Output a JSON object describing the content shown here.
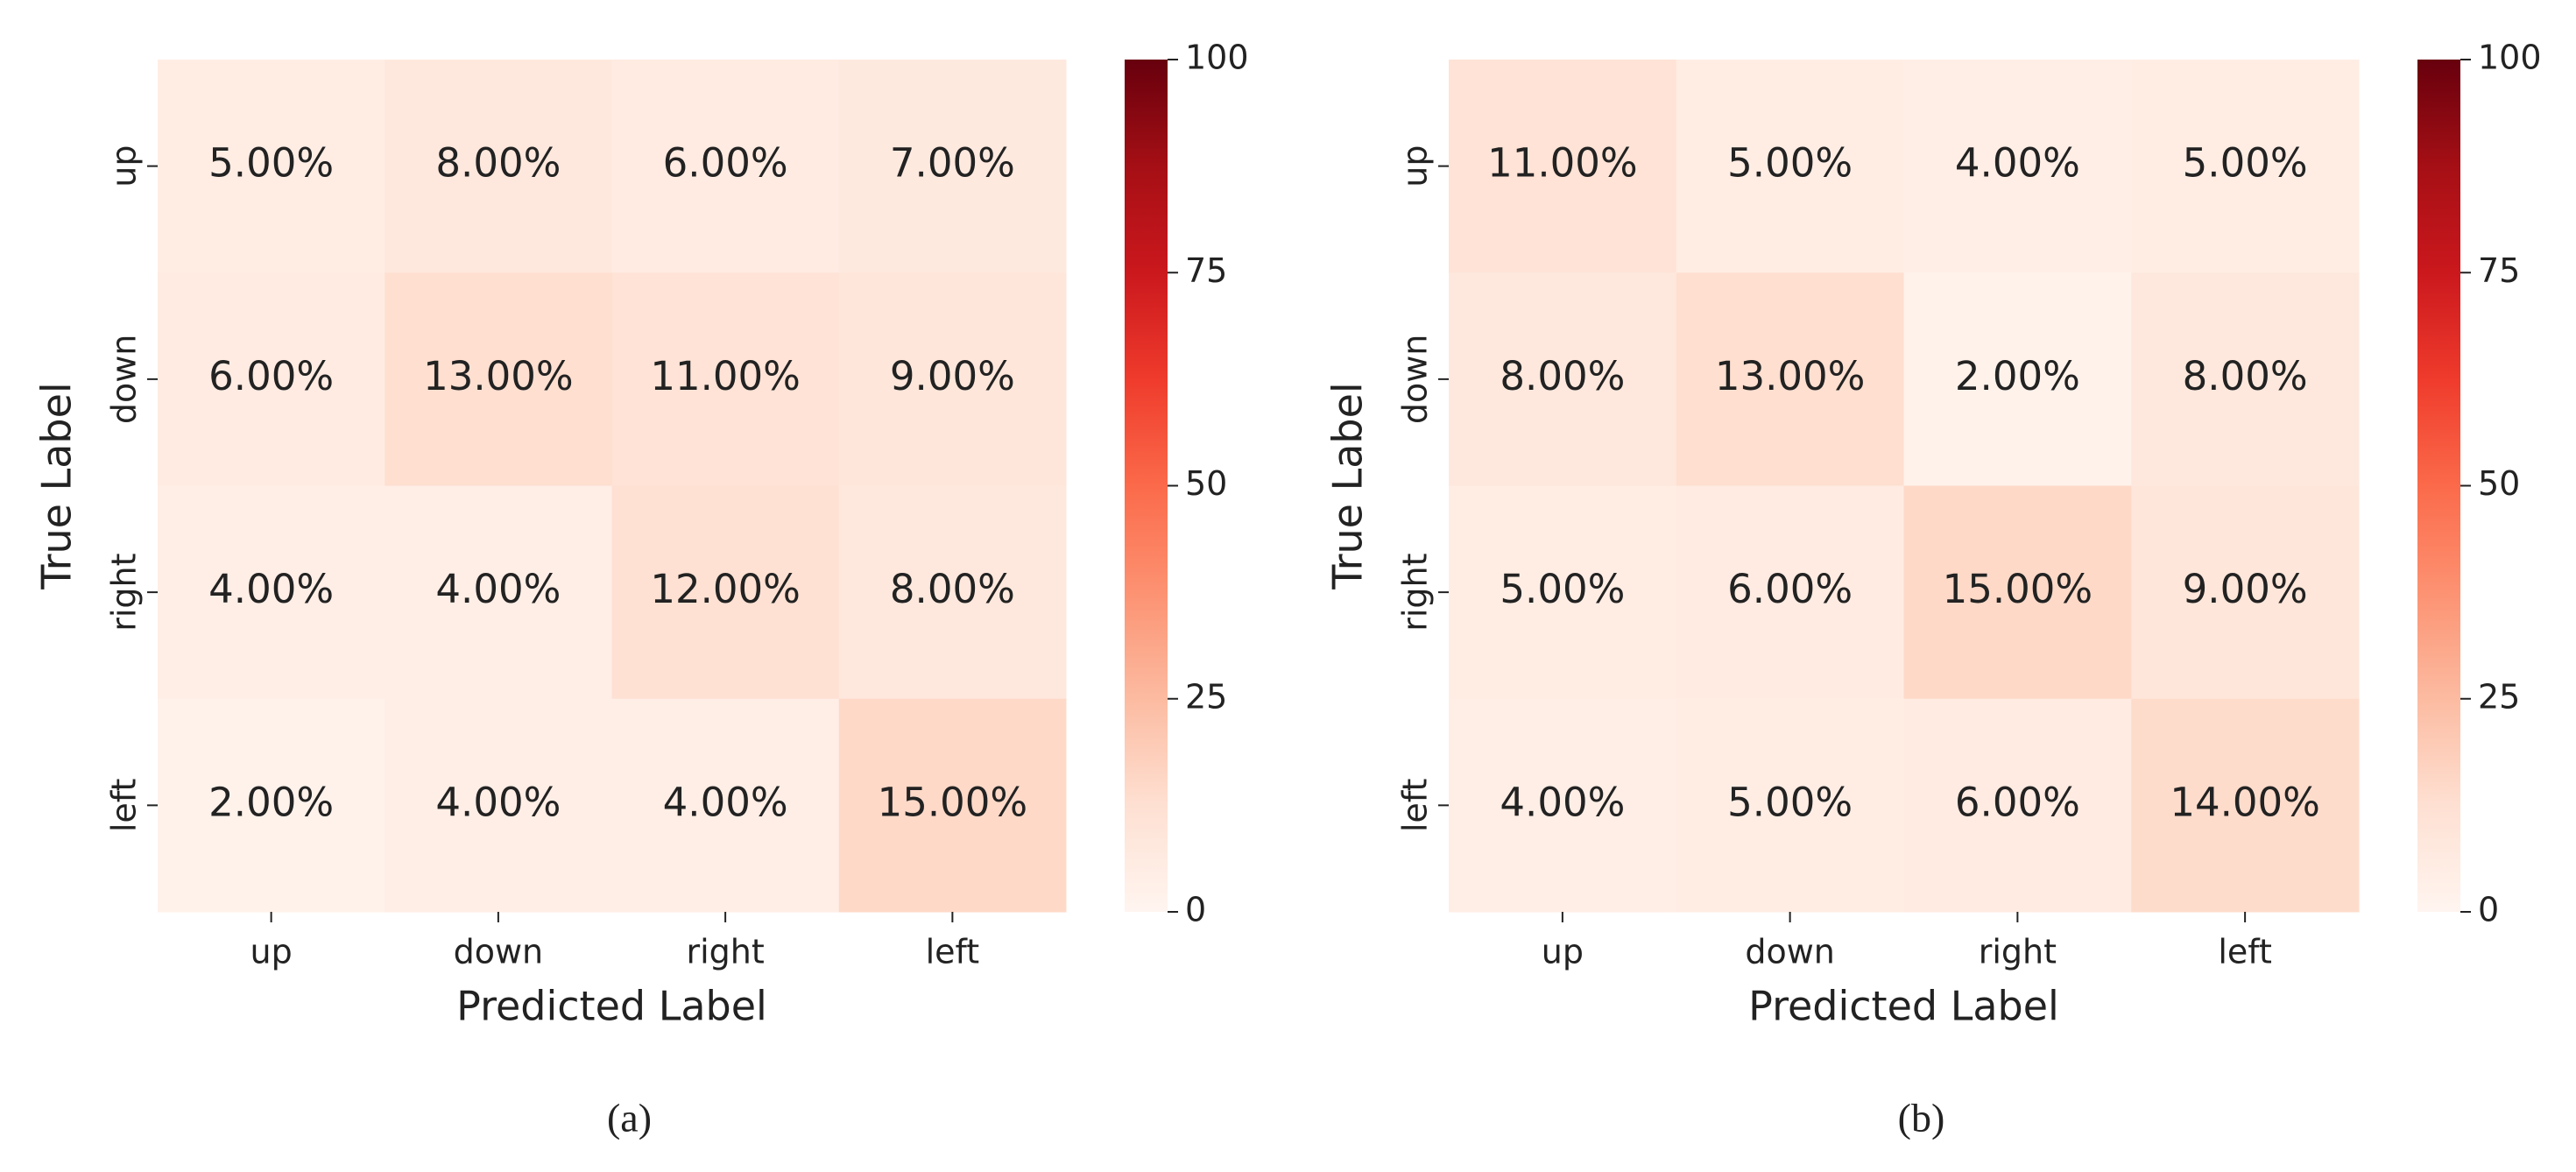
{
  "chart_data": [
    {
      "type": "heatmap",
      "caption": "(a)",
      "xlabel": "Predicted Label",
      "ylabel": "True Label",
      "x_categories": [
        "up",
        "down",
        "right",
        "left"
      ],
      "y_categories": [
        "up",
        "down",
        "right",
        "left"
      ],
      "values": [
        [
          5,
          8,
          6,
          7
        ],
        [
          6,
          13,
          11,
          9
        ],
        [
          4,
          4,
          12,
          8
        ],
        [
          2,
          4,
          4,
          15
        ]
      ],
      "value_labels": [
        [
          "5.00%",
          "8.00%",
          "6.00%",
          "7.00%"
        ],
        [
          "6.00%",
          "13.00%",
          "11.00%",
          "9.00%"
        ],
        [
          "4.00%",
          "4.00%",
          "12.00%",
          "8.00%"
        ],
        [
          "2.00%",
          "4.00%",
          "4.00%",
          "15.00%"
        ]
      ],
      "colormap": "Reds",
      "zlim": [
        0,
        100
      ],
      "zticks": [
        0,
        25,
        50,
        75,
        100
      ]
    },
    {
      "type": "heatmap",
      "caption": "(b)",
      "xlabel": "Predicted Label",
      "ylabel": "True Label",
      "x_categories": [
        "up",
        "down",
        "right",
        "left"
      ],
      "y_categories": [
        "up",
        "down",
        "right",
        "left"
      ],
      "values": [
        [
          11,
          5,
          4,
          5
        ],
        [
          8,
          13,
          2,
          8
        ],
        [
          5,
          6,
          15,
          9
        ],
        [
          4,
          5,
          6,
          14
        ]
      ],
      "value_labels": [
        [
          "11.00%",
          "5.00%",
          "4.00%",
          "5.00%"
        ],
        [
          "8.00%",
          "13.00%",
          "2.00%",
          "8.00%"
        ],
        [
          "5.00%",
          "6.00%",
          "15.00%",
          "9.00%"
        ],
        [
          "4.00%",
          "5.00%",
          "6.00%",
          "14.00%"
        ]
      ],
      "colormap": "Reds",
      "zlim": [
        0,
        100
      ],
      "zticks": [
        0,
        25,
        50,
        75,
        100
      ]
    }
  ]
}
